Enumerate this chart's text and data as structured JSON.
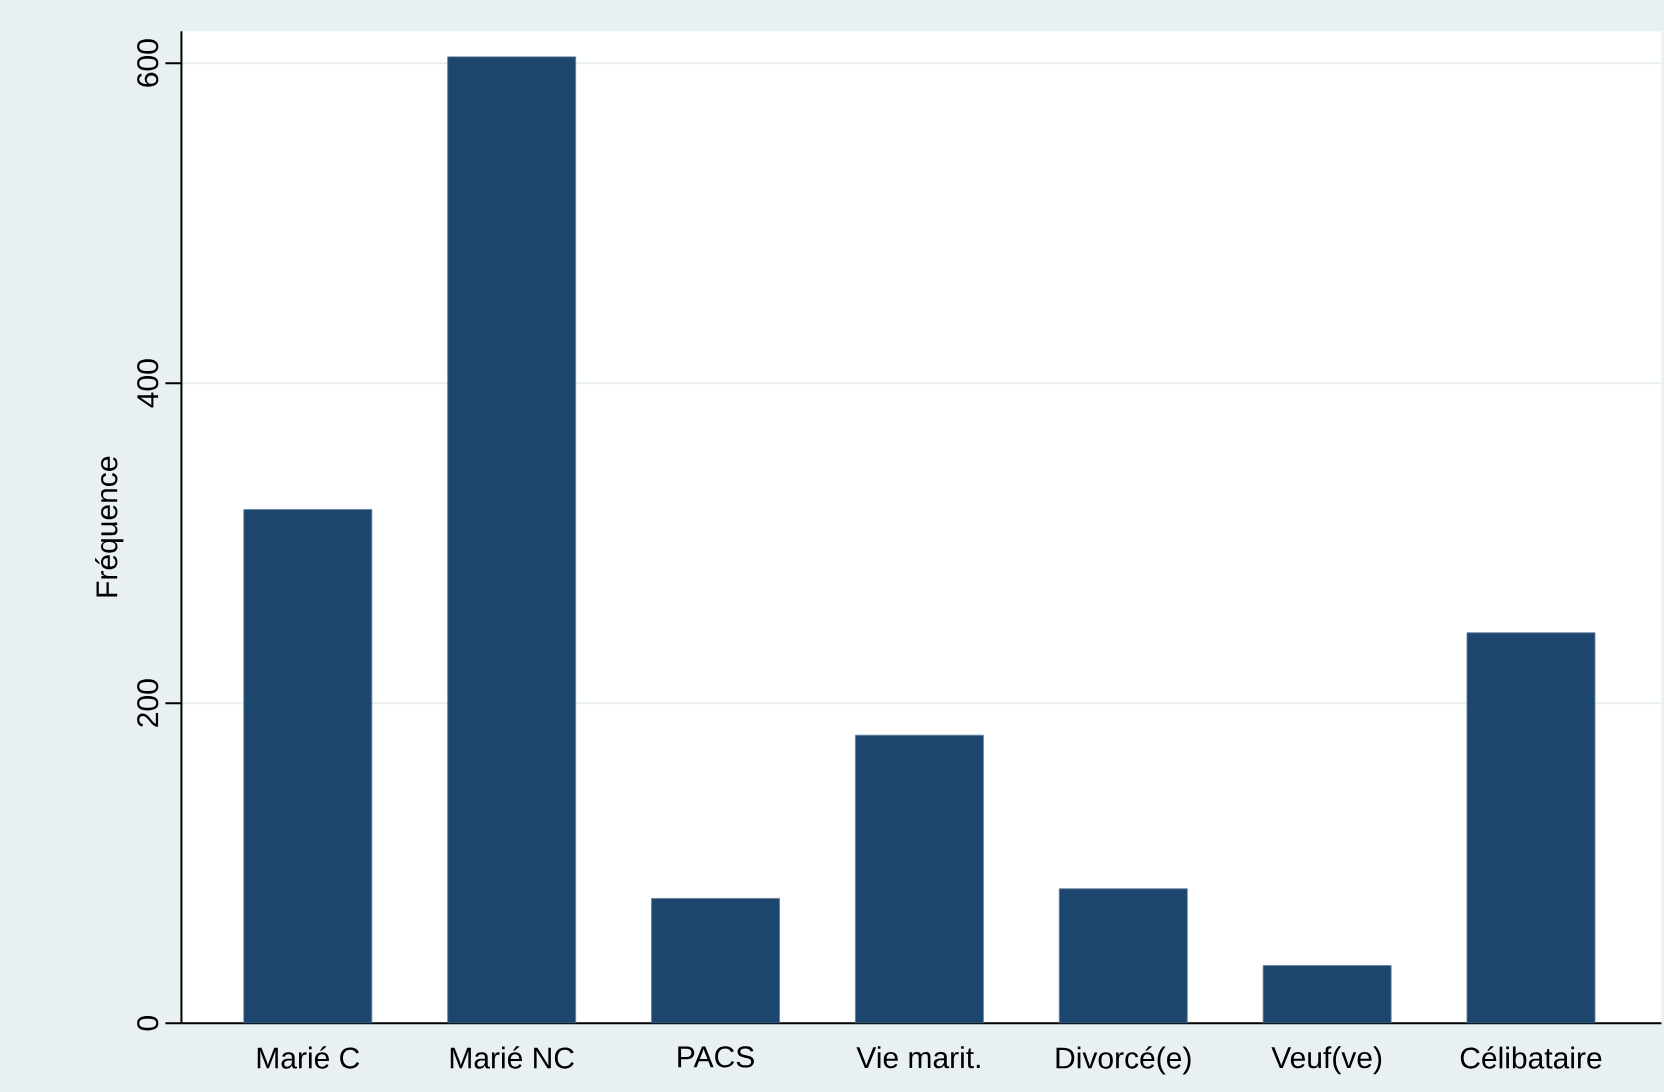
{
  "chart_data": {
    "type": "bar",
    "ylabel": "Fréquence",
    "categories": [
      "Marié C",
      "Marié NC",
      "PACS",
      "Vie marit.",
      "Divorcé(e)",
      "Veuf(ve)",
      "Célibataire"
    ],
    "values": [
      321,
      604,
      78,
      180,
      84,
      36,
      244
    ],
    "color": "#1c466e",
    "ylim": [
      0,
      620
    ],
    "yticks": [
      0,
      200,
      400,
      600
    ],
    "grid": "y"
  }
}
